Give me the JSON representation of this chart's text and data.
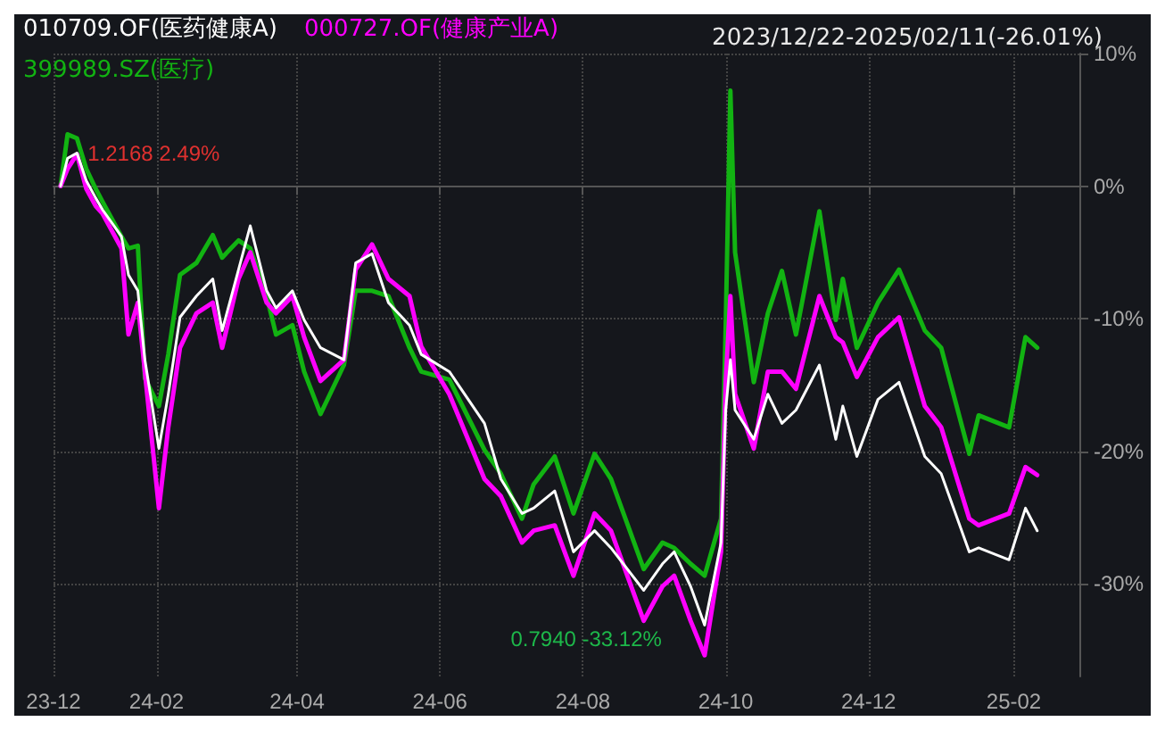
{
  "chart_data": {
    "type": "line",
    "subtitle": "2023/12/22-2025/02/11(-26.01%)",
    "x": [
      "2023-12-22",
      "2023-12-25",
      "2023-12-29",
      "2024-01-02",
      "2024-01-06",
      "2024-01-09",
      "2024-01-17",
      "2024-01-20",
      "2024-01-24",
      "2024-01-27",
      "2024-02-02",
      "2024-02-06",
      "2024-02-11",
      "2024-02-18",
      "2024-02-25",
      "2024-02-29",
      "2024-03-07",
      "2024-03-12",
      "2024-03-19",
      "2024-03-23",
      "2024-03-30",
      "2024-04-04",
      "2024-04-11",
      "2024-04-21",
      "2024-04-26",
      "2024-05-03",
      "2024-05-10",
      "2024-05-19",
      "2024-05-24",
      "2024-06-05",
      "2024-06-20",
      "2024-06-27",
      "2024-07-06",
      "2024-07-11",
      "2024-07-20",
      "2024-07-28",
      "2024-08-06",
      "2024-08-13",
      "2024-08-27",
      "2024-09-04",
      "2024-09-09",
      "2024-09-16",
      "2024-09-22",
      "2024-09-29",
      "2024-10-01",
      "2024-10-03",
      "2024-10-05",
      "2024-10-13",
      "2024-10-19",
      "2024-10-25",
      "2024-10-31",
      "2024-11-10",
      "2024-11-17",
      "2024-11-20",
      "2024-11-26",
      "2024-12-05",
      "2024-12-14",
      "2024-12-25",
      "2025-01-01",
      "2025-01-13",
      "2025-01-17",
      "2025-01-30",
      "2025-02-06",
      "2025-02-11"
    ],
    "series": [
      {
        "name": "010709.OF(医药健康A)",
        "color": "#ffffff",
        "values": [
          0,
          2.1,
          2.49,
          0.4,
          -0.9,
          -1.8,
          -3.8,
          -6.7,
          -7.9,
          -13.1,
          -19.8,
          -15.7,
          -9.9,
          -8.3,
          -7.0,
          -10.9,
          -6.3,
          -3.0,
          -7.9,
          -9.2,
          -7.9,
          -10.1,
          -12.2,
          -13.1,
          -5.8,
          -5.1,
          -8.8,
          -10.5,
          -12.7,
          -14.0,
          -17.9,
          -22.1,
          -24.7,
          -24.3,
          -23.0,
          -27.6,
          -26.0,
          -27.3,
          -30.5,
          -28.5,
          -27.6,
          -30.2,
          -33.12,
          -26.9,
          -16.9,
          -13.1,
          -16.9,
          -19.1,
          -15.7,
          -17.9,
          -16.9,
          -13.5,
          -19.1,
          -16.6,
          -20.4,
          -16.1,
          -14.8,
          -20.4,
          -21.7,
          -27.6,
          -27.3,
          -28.2,
          -24.3,
          -26.01
        ]
      },
      {
        "name": "000727.OF(健康产业A)",
        "color": "#ff00ff",
        "values": [
          0,
          1.3,
          2.4,
          -0.2,
          -1.5,
          -2.1,
          -4.7,
          -11.2,
          -8.8,
          -14.0,
          -24.3,
          -18.2,
          -12.2,
          -9.6,
          -8.8,
          -12.2,
          -7.0,
          -5.0,
          -8.8,
          -9.6,
          -8.3,
          -11.4,
          -14.7,
          -13.1,
          -6.3,
          -4.4,
          -7.0,
          -8.3,
          -12.1,
          -15.7,
          -22.1,
          -23.4,
          -26.9,
          -26.0,
          -25.6,
          -29.4,
          -24.7,
          -26.0,
          -32.8,
          -30.2,
          -29.4,
          -32.8,
          -35.4,
          -27.6,
          -14.8,
          -8.3,
          -15.7,
          -19.8,
          -14.0,
          -14.0,
          -15.3,
          -8.3,
          -11.4,
          -11.8,
          -14.4,
          -11.4,
          -9.9,
          -16.6,
          -18.2,
          -25.1,
          -25.6,
          -24.7,
          -21.2,
          -21.8
        ]
      },
      {
        "name": "399989.SZ(医疗)",
        "color": "#12b312",
        "values": [
          0,
          3.9,
          3.6,
          1.3,
          -0.2,
          -1.2,
          -3.8,
          -4.7,
          -4.5,
          -14.5,
          -16.6,
          -12.7,
          -6.7,
          -5.8,
          -3.7,
          -5.4,
          -4.1,
          -4.7,
          -8.3,
          -11.2,
          -10.5,
          -14.0,
          -17.2,
          -13.5,
          -7.9,
          -7.9,
          -8.3,
          -12.2,
          -14.0,
          -14.6,
          -19.9,
          -21.7,
          -25.1,
          -22.5,
          -20.4,
          -24.7,
          -20.2,
          -22.1,
          -28.9,
          -26.9,
          -27.3,
          -28.5,
          -29.4,
          -25.1,
          -10.5,
          7.2,
          -5.0,
          -14.8,
          -9.6,
          -6.4,
          -11.2,
          -1.9,
          -10.1,
          -7.0,
          -12.2,
          -8.8,
          -6.3,
          -10.9,
          -12.2,
          -20.2,
          -17.3,
          -18.2,
          -11.4,
          -12.2
        ]
      }
    ],
    "xlim": [
      "2023-12-19",
      "2025-03-01"
    ],
    "xticks": [
      {
        "value": "2023-12-19",
        "label": "23-12"
      },
      {
        "value": "2024-02-01",
        "label": "24-02"
      },
      {
        "value": "2024-04-01",
        "label": "24-04"
      },
      {
        "value": "2024-06-01",
        "label": "24-06"
      },
      {
        "value": "2024-08-01",
        "label": "24-08"
      },
      {
        "value": "2024-10-01",
        "label": "24-10"
      },
      {
        "value": "2024-12-01",
        "label": "24-12"
      },
      {
        "value": "2025-02-01",
        "label": "25-02"
      }
    ],
    "ylim": [
      -37,
      10
    ],
    "yticks": [
      {
        "value": -30,
        "label": "-30%"
      },
      {
        "value": -20,
        "label": "-20%"
      },
      {
        "value": -10,
        "label": "-10%"
      },
      {
        "value": 0,
        "label": "0%"
      },
      {
        "value": 10,
        "label": "10%"
      }
    ],
    "annotations": [
      {
        "text": "1.2168 2.49%",
        "x": "2023-12-29",
        "y": 2.49
      },
      {
        "text": "0.7940 -33.12%",
        "x": "2024-09-22",
        "y": -33.12
      }
    ],
    "grid": true,
    "legend": "top left",
    "marker": "none",
    "line_style": "solid"
  }
}
